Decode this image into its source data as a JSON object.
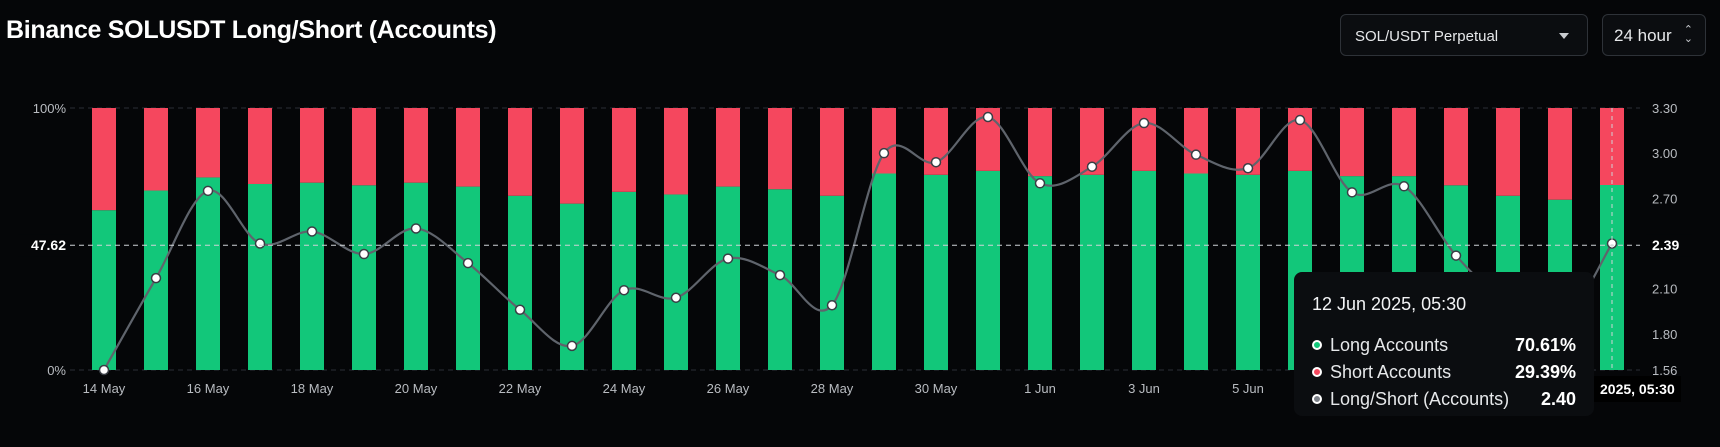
{
  "header": {
    "title": "Binance SOLUSDT Long/Short (Accounts)",
    "symbol_select": "SOL/USDT Perpetual",
    "range_select": "24 hour"
  },
  "colors": {
    "long": "#12c77a",
    "short": "#f5475e",
    "line": "#5f646c",
    "grid": "#2b2f36"
  },
  "chart_data": {
    "type": "bar",
    "stacked": true,
    "x": [
      "14 May",
      "15 May",
      "16 May",
      "17 May",
      "18 May",
      "19 May",
      "20 May",
      "21 May",
      "22 May",
      "23 May",
      "24 May",
      "25 May",
      "26 May",
      "27 May",
      "28 May",
      "29 May",
      "30 May",
      "31 May",
      "1 Jun",
      "2 Jun",
      "3 Jun",
      "4 Jun",
      "5 Jun",
      "6 Jun",
      "7 Jun",
      "8 Jun",
      "9 Jun",
      "10 Jun",
      "11 Jun",
      "12 Jun"
    ],
    "series": [
      {
        "name": "Long Accounts",
        "axis": "left",
        "values": [
          61,
          68.5,
          73.5,
          71,
          71.5,
          70.5,
          71.5,
          70,
          66.5,
          63.5,
          68,
          67,
          70,
          69,
          66.5,
          75,
          74.5,
          76,
          74,
          74.5,
          76,
          75,
          74.5,
          76,
          74,
          74,
          70.5,
          66.5,
          65,
          70.61
        ]
      },
      {
        "name": "Short Accounts",
        "axis": "left",
        "values": [
          39,
          31.5,
          26.5,
          29,
          28.5,
          29.5,
          28.5,
          30,
          33.5,
          36.5,
          32,
          33,
          30,
          31,
          33.5,
          25,
          25.5,
          24,
          26,
          25.5,
          24,
          25,
          25.5,
          24,
          26,
          26,
          29.5,
          33.5,
          35,
          29.39
        ]
      },
      {
        "name": "Long/Short (Accounts)",
        "axis": "right",
        "values": [
          1.56,
          2.17,
          2.75,
          2.4,
          2.48,
          2.33,
          2.5,
          2.27,
          1.96,
          1.72,
          2.09,
          2.04,
          2.3,
          2.19,
          1.99,
          3.0,
          2.94,
          3.24,
          2.8,
          2.91,
          3.2,
          2.99,
          2.9,
          3.22,
          2.74,
          2.78,
          2.32,
          2.0,
          1.86,
          2.4
        ]
      }
    ],
    "xticks": [
      "14 May",
      "16 May",
      "18 May",
      "20 May",
      "22 May",
      "24 May",
      "26 May",
      "28 May",
      "30 May",
      "1 Jun",
      "3 Jun",
      "5 Jun"
    ],
    "left_axis": {
      "ticks": [
        "100%",
        "0%"
      ],
      "ylim": [
        0,
        100
      ]
    },
    "right_axis": {
      "ticks": [
        "3.30",
        "3.00",
        "2.70",
        "2.10",
        "1.80",
        "1.56"
      ],
      "ylim": [
        1.56,
        3.3
      ]
    },
    "crosshair": {
      "left_label": "47.62",
      "right_label": "2.39",
      "x_label": "2025, 05:30",
      "index": 29
    },
    "grid": "horizontal dashed"
  },
  "tooltip": {
    "title": "12 Jun 2025, 05:30",
    "rows": [
      {
        "label": "Long Accounts",
        "value": "70.61%",
        "color": "#12c77a"
      },
      {
        "label": "Short Accounts",
        "value": "29.39%",
        "color": "#f5475e"
      },
      {
        "label": "Long/Short (Accounts)",
        "value": "2.40",
        "color": "#7c8088"
      }
    ]
  }
}
